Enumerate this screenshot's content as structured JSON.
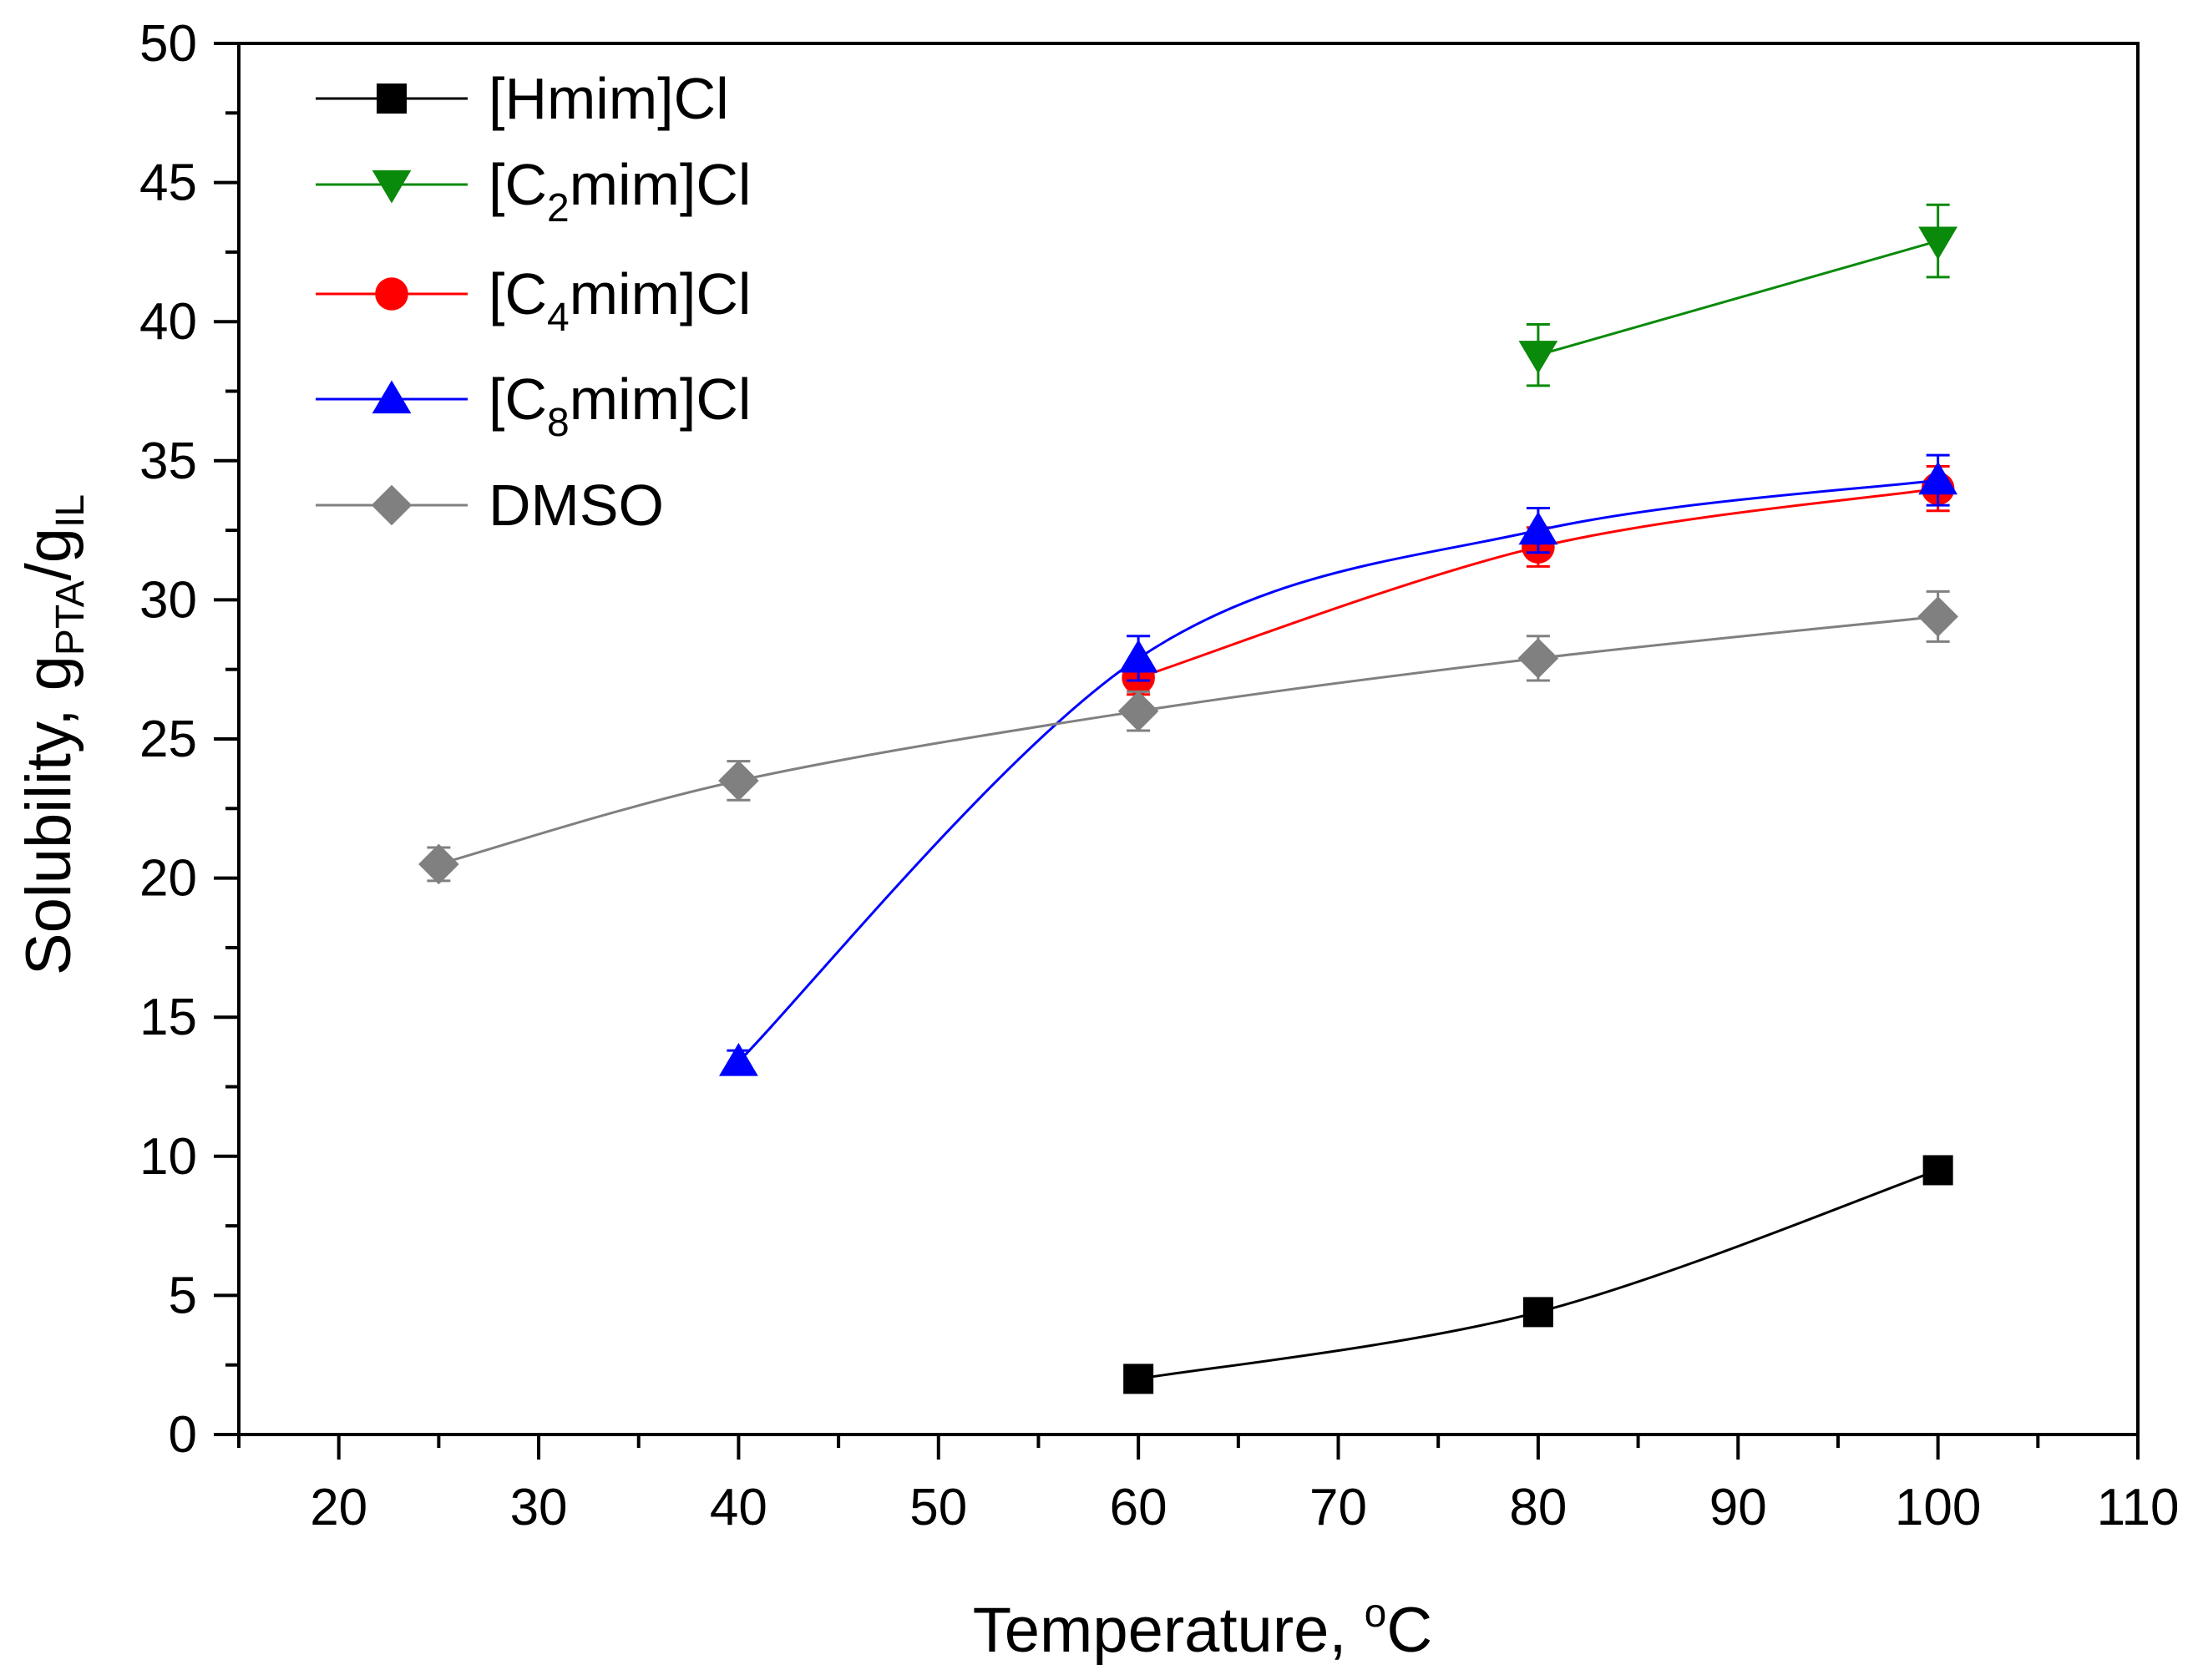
{
  "chart_data": {
    "type": "line",
    "title": "",
    "xlabel": "Temperature, °C",
    "xlabel_parts": {
      "main": "Temperature, ",
      "sup": "o",
      "unit": "C"
    },
    "ylabel": "Solubility, gPTA/gIL",
    "ylabel_parts": {
      "main": "Solubility, g",
      "sub1": "PTA",
      "mid": "/g",
      "sub2": "IL"
    },
    "xlim": [
      15,
      110
    ],
    "ylim": [
      0,
      50
    ],
    "xticks": [
      20,
      30,
      40,
      50,
      60,
      70,
      80,
      90,
      100,
      110
    ],
    "yticks": [
      0,
      5,
      10,
      15,
      20,
      25,
      30,
      35,
      40,
      45,
      50
    ],
    "legend_position": "top-left",
    "series": [
      {
        "name": "[Hmim]Cl",
        "label_parts": {
          "pre": "[Hmim]Cl",
          "sub": "",
          "post": ""
        },
        "color": "#000000",
        "marker": "square",
        "x": [
          60,
          80,
          100
        ],
        "y": [
          2.0,
          4.4,
          9.5
        ],
        "err": [
          0,
          0,
          0
        ]
      },
      {
        "name": "[C2mim]Cl",
        "label_parts": {
          "pre": "[C",
          "sub": "2",
          "post": "mim]Cl"
        },
        "color": "#0a8a0a",
        "marker": "triangle-down",
        "x": [
          80,
          100
        ],
        "y": [
          38.8,
          42.9
        ],
        "err": [
          1.1,
          1.3
        ]
      },
      {
        "name": "[C4mim]Cl",
        "label_parts": {
          "pre": "[C",
          "sub": "4",
          "post": "mim]Cl"
        },
        "color": "#ff0000",
        "marker": "circle",
        "x": [
          60,
          80,
          100
        ],
        "y": [
          27.2,
          31.9,
          34.0
        ],
        "err": [
          0.6,
          0.7,
          0.8
        ]
      },
      {
        "name": "[C8mim]Cl",
        "label_parts": {
          "pre": "[C",
          "sub": "8",
          "post": "mim]Cl"
        },
        "color": "#0000ff",
        "marker": "triangle-up",
        "x": [
          40,
          60,
          80,
          100
        ],
        "y": [
          13.4,
          27.9,
          32.5,
          34.3
        ],
        "err": [
          0.4,
          0.8,
          0.8,
          0.9
        ]
      },
      {
        "name": "DMSO",
        "label_parts": {
          "pre": "DMSO",
          "sub": "",
          "post": ""
        },
        "color": "#808080",
        "marker": "diamond",
        "x": [
          25,
          40,
          60,
          80,
          100
        ],
        "y": [
          20.5,
          23.5,
          26.0,
          27.9,
          29.4
        ],
        "err": [
          0.6,
          0.7,
          0.7,
          0.8,
          0.9
        ]
      }
    ]
  }
}
